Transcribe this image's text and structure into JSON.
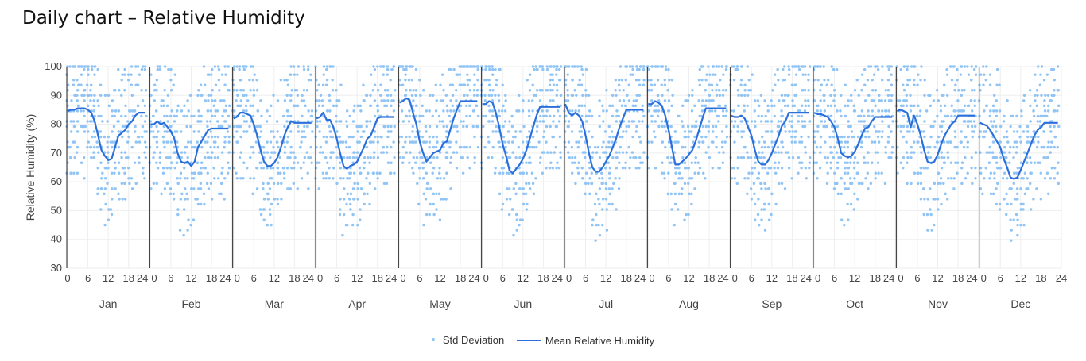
{
  "page": {
    "title": "Daily chart – Relative Humidity"
  },
  "colors": {
    "scatter": "#90c4f5",
    "mean_line": "#2b6fdc",
    "grid": "#eeeeee",
    "separator": "#222222"
  },
  "legend": {
    "scatter_label": "Std Deviation",
    "line_label": "Mean Relative Humidity"
  },
  "chart_data": {
    "type": "line",
    "title": "Daily chart – Relative Humidity",
    "ylabel": "Relative Humidity (%)",
    "xlabel": "",
    "ylim": [
      30,
      100
    ],
    "yticks": [
      30,
      40,
      50,
      60,
      70,
      80,
      90,
      100
    ],
    "xlim": [
      0,
      24
    ],
    "xticks": [
      0,
      6,
      12,
      18,
      24
    ],
    "xtick_labels": [
      "0",
      "6",
      "12",
      "18",
      "24"
    ],
    "grid": true,
    "legend_position": "bottom-center",
    "facets": [
      "Jan",
      "Feb",
      "Mar",
      "Apr",
      "May",
      "Jun",
      "Jul",
      "Aug",
      "Sep",
      "Oct",
      "Nov",
      "Dec"
    ],
    "hours": [
      0,
      1,
      2,
      3,
      4,
      5,
      6,
      7,
      8,
      9,
      10,
      11,
      12,
      13,
      14,
      15,
      16,
      17,
      18,
      19,
      20,
      21,
      22,
      23
    ],
    "series": [
      {
        "name": "Mean Relative Humidity",
        "style": "line",
        "values": {
          "Jan": [
            84.5,
            85,
            85,
            85.5,
            85.5,
            85.5,
            85,
            84,
            81,
            76,
            71,
            69,
            67.5,
            68,
            72,
            76,
            77,
            78,
            80,
            81,
            83,
            84,
            84,
            84
          ],
          "Feb": [
            80,
            80,
            81,
            80,
            80.5,
            79,
            77.5,
            75,
            70,
            67,
            66.5,
            67,
            65.5,
            67,
            72,
            74,
            76,
            78,
            78.5,
            78.5,
            78.5,
            78.5,
            78.5,
            78.5
          ],
          "Mar": [
            82,
            82.5,
            84,
            84,
            83.5,
            83,
            80,
            76,
            71,
            67,
            65.5,
            65.5,
            66.5,
            68.5,
            72,
            76,
            79,
            81,
            80.5,
            80.5,
            80.5,
            80.5,
            80.5,
            80.5
          ],
          "Apr": [
            82,
            82.5,
            84,
            81.5,
            81.5,
            79,
            75,
            70,
            65.5,
            64.5,
            65.5,
            66,
            67,
            69.5,
            72,
            75,
            76,
            79,
            82,
            82.5,
            82.5,
            82.5,
            82.5,
            82.5
          ],
          "May": [
            87.5,
            88,
            89,
            88.5,
            84,
            80,
            74,
            70,
            67,
            68.5,
            70,
            70.5,
            71,
            73.5,
            74,
            78,
            82,
            85,
            88,
            88,
            88,
            88,
            88,
            88
          ],
          "Jun": [
            87,
            87,
            88,
            87.5,
            84,
            79,
            73,
            69,
            64,
            63,
            64.5,
            66,
            68,
            71,
            75,
            79,
            83,
            86,
            86,
            86,
            86,
            86,
            86,
            86
          ],
          "Jul": [
            87,
            84,
            83,
            84,
            83,
            81,
            76,
            70,
            65,
            63.5,
            63.5,
            65,
            67,
            69,
            72,
            75,
            79,
            82,
            85,
            85,
            85,
            85,
            85,
            85
          ],
          "Aug": [
            87,
            87,
            88,
            87.5,
            86.5,
            83,
            78,
            72,
            66,
            66,
            67,
            68,
            69.5,
            71,
            74,
            78,
            82,
            85.5,
            85.5,
            85.5,
            85.5,
            85.5,
            85.5,
            85.5
          ],
          "Sep": [
            83,
            82.5,
            82.5,
            83,
            82,
            79,
            76,
            71,
            67,
            66,
            66,
            67.5,
            70,
            73,
            76,
            79.5,
            81,
            84,
            84,
            84,
            84,
            84,
            84,
            84
          ],
          "Oct": [
            84,
            83.5,
            83.5,
            83,
            82.5,
            81,
            79,
            75,
            70,
            69,
            68.5,
            69,
            70.5,
            73,
            76,
            78.5,
            79,
            81,
            82.5,
            82.5,
            82.5,
            82.5,
            82.5,
            82.5
          ],
          "Nov": [
            84.5,
            85,
            84.5,
            84,
            79,
            83,
            80,
            76,
            71,
            67,
            66.5,
            67,
            69.5,
            73,
            76,
            78,
            80,
            81,
            83,
            83,
            83,
            83,
            83,
            83
          ],
          "Dec": [
            80.5,
            80,
            79.5,
            78,
            76,
            74,
            72,
            68,
            65,
            61.5,
            61,
            61.5,
            64,
            67,
            70,
            73,
            76,
            78,
            79,
            80.5,
            80.5,
            80.5,
            80.5,
            80.5
          ]
        }
      },
      {
        "name": "Std Deviation",
        "style": "points",
        "offsets": [
          -22,
          -18,
          -14,
          -11,
          -8,
          -6,
          -4,
          -2,
          0,
          2,
          4,
          6,
          8,
          11,
          14,
          18,
          22
        ]
      }
    ]
  }
}
